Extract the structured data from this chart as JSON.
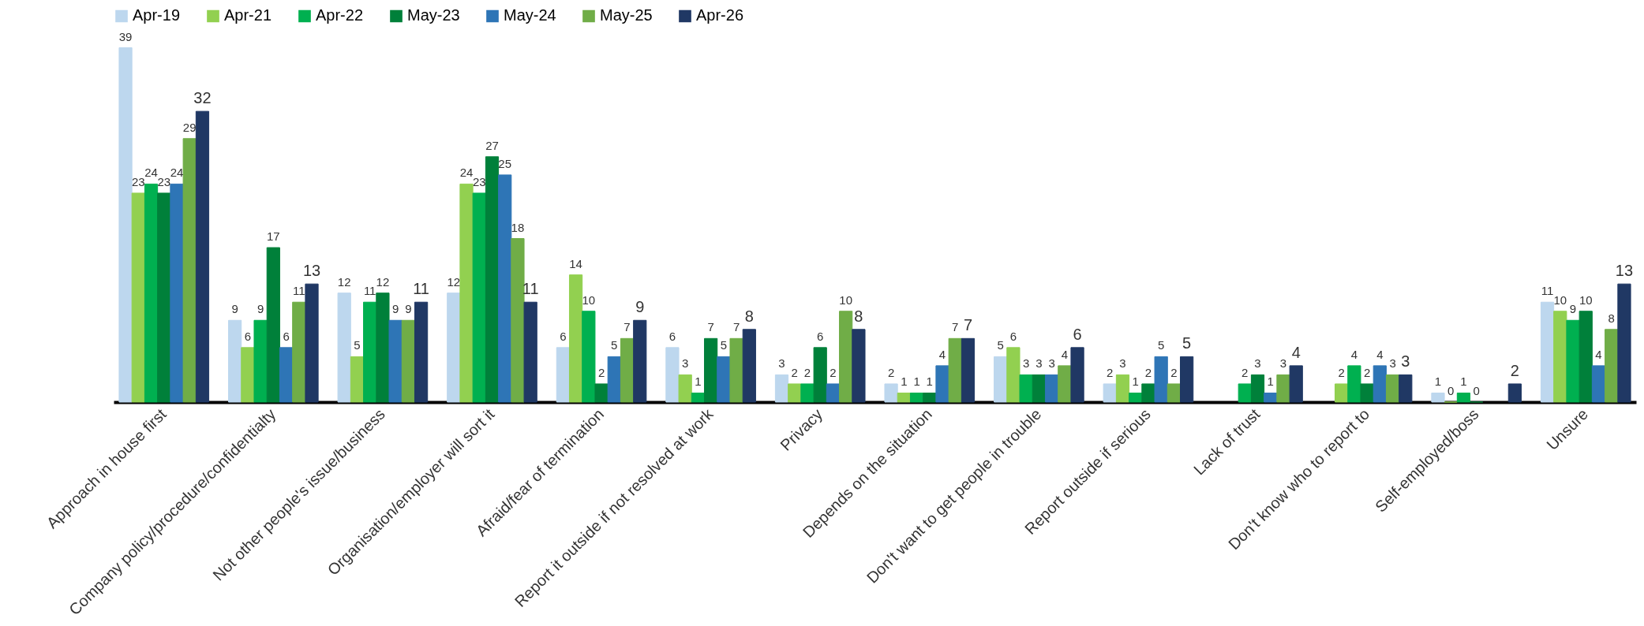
{
  "chart_data": {
    "type": "bar",
    "categories": [
      "Approach in house first",
      "Company policy/procedure/confidentialty",
      "Not other people's issue/business",
      "Organisation/employer will sort it",
      "Afraid/fear of termination",
      "Report it outside if not resolved at work",
      "Privacy",
      "Depends on the situation",
      "Don't want to get people in trouble",
      "Report outside if serious",
      "Lack of trust",
      "Don't know who to report to",
      "Self-employed/boss",
      "Unsure"
    ],
    "series": [
      {
        "name": "Apr-19",
        "color": "#bdd7ee",
        "values": [
          39,
          9,
          12,
          12,
          6,
          6,
          3,
          2,
          5,
          2,
          null,
          null,
          1,
          11
        ]
      },
      {
        "name": "Apr-21",
        "color": "#92d050",
        "values": [
          23,
          6,
          5,
          24,
          14,
          3,
          2,
          1,
          6,
          3,
          null,
          2,
          0,
          10
        ]
      },
      {
        "name": "Apr-22",
        "color": "#00b050",
        "values": [
          24,
          9,
          11,
          23,
          10,
          1,
          2,
          1,
          3,
          1,
          2,
          4,
          1,
          9
        ]
      },
      {
        "name": "May-23",
        "color": "#00803a",
        "values": [
          23,
          17,
          12,
          27,
          2,
          7,
          6,
          1,
          3,
          2,
          3,
          2,
          0,
          10
        ]
      },
      {
        "name": "May-24",
        "color": "#2e75b6",
        "values": [
          24,
          6,
          9,
          25,
          5,
          5,
          2,
          4,
          3,
          5,
          1,
          4,
          null,
          4
        ]
      },
      {
        "name": "May-25",
        "color": "#70ad47",
        "values": [
          29,
          11,
          9,
          18,
          7,
          7,
          10,
          7,
          4,
          2,
          3,
          3,
          null,
          8
        ]
      },
      {
        "name": "Apr-26",
        "color": "#203864",
        "values": [
          32,
          13,
          11,
          11,
          9,
          8,
          8,
          7,
          6,
          5,
          4,
          3,
          2,
          13
        ]
      }
    ],
    "data_labels": true,
    "legend": "top",
    "grid": false
  }
}
